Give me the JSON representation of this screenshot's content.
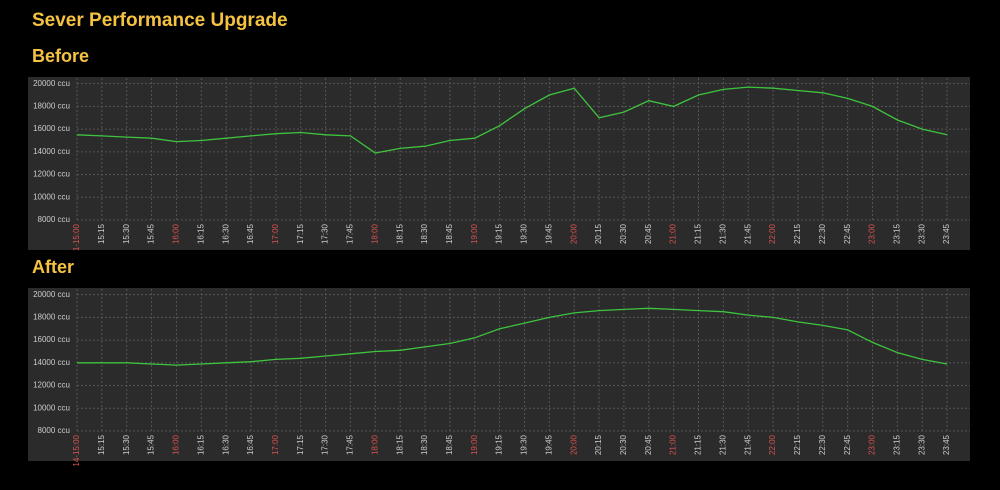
{
  "title": "Sever Performance Upgrade",
  "chart_data": [
    {
      "type": "line",
      "title": "Before",
      "categories": [
        "1-15:00",
        "15:15",
        "15:30",
        "15:45",
        "16:00",
        "16:15",
        "16:30",
        "16:45",
        "17:00",
        "17:15",
        "17:30",
        "17:45",
        "18:00",
        "18:15",
        "18:30",
        "18:45",
        "19:00",
        "19:15",
        "19:30",
        "19:45",
        "20:00",
        "20:15",
        "20:30",
        "20:45",
        "21:00",
        "21:15",
        "21:30",
        "21:45",
        "22:00",
        "22:15",
        "22:30",
        "22:45",
        "23:00",
        "23:15",
        "23:30",
        "23:45"
      ],
      "series": [
        {
          "name": "ccu",
          "color": "#3ec43e",
          "values": [
            15500,
            15400,
            15300,
            15200,
            14900,
            15000,
            15200,
            15400,
            15600,
            15700,
            15500,
            15400,
            13900,
            14300,
            14500,
            15000,
            15200,
            16300,
            17800,
            19000,
            19600,
            17000,
            17500,
            18500,
            18000,
            19000,
            19500,
            19700,
            19600,
            19400,
            19200,
            18700,
            18000,
            16800,
            16000,
            15500
          ]
        }
      ],
      "ylim": [
        8000,
        20500
      ],
      "yticks": [
        {
          "value": 8000,
          "label": "8000 ccu"
        },
        {
          "value": 10000,
          "label": "10000 ccu"
        },
        {
          "value": 12000,
          "label": "12000 ccu"
        },
        {
          "value": 14000,
          "label": "14000 ccu"
        },
        {
          "value": 16000,
          "label": "16000 ccu"
        },
        {
          "value": 18000,
          "label": "18000 ccu"
        },
        {
          "value": 20000,
          "label": "20000 ccu"
        }
      ],
      "grid": true,
      "label_color": "#cccccc",
      "hour_label_color": "#d9534f"
    },
    {
      "type": "line",
      "title": "After",
      "categories": [
        "14-15:00",
        "15:15",
        "15:30",
        "15:45",
        "16:00",
        "16:15",
        "16:30",
        "16:45",
        "17:00",
        "17:15",
        "17:30",
        "17:45",
        "18:00",
        "18:15",
        "18:30",
        "18:45",
        "19:00",
        "19:15",
        "19:30",
        "19:45",
        "20:00",
        "20:15",
        "20:30",
        "20:45",
        "21:00",
        "21:15",
        "21:30",
        "21:45",
        "22:00",
        "22:15",
        "22:30",
        "22:45",
        "23:00",
        "23:15",
        "23:30",
        "23:45"
      ],
      "series": [
        {
          "name": "ccu",
          "color": "#3ec43e",
          "values": [
            14000,
            14000,
            14000,
            13900,
            13800,
            13900,
            14000,
            14100,
            14300,
            14400,
            14600,
            14800,
            15000,
            15100,
            15400,
            15700,
            16200,
            17000,
            17500,
            18000,
            18400,
            18600,
            18700,
            18800,
            18700,
            18600,
            18500,
            18200,
            18000,
            17600,
            17300,
            16900,
            15800,
            14900,
            14300,
            13900
          ]
        }
      ],
      "ylim": [
        8000,
        20500
      ],
      "yticks": [
        {
          "value": 8000,
          "label": "8000 ccu"
        },
        {
          "value": 10000,
          "label": "10000 ccu"
        },
        {
          "value": 12000,
          "label": "12000 ccu"
        },
        {
          "value": 14000,
          "label": "14000 ccu"
        },
        {
          "value": 16000,
          "label": "16000 ccu"
        },
        {
          "value": 18000,
          "label": "18000 ccu"
        },
        {
          "value": 20000,
          "label": "20000 ccu"
        }
      ],
      "grid": true,
      "label_color": "#cccccc",
      "hour_label_color": "#d9534f"
    }
  ]
}
